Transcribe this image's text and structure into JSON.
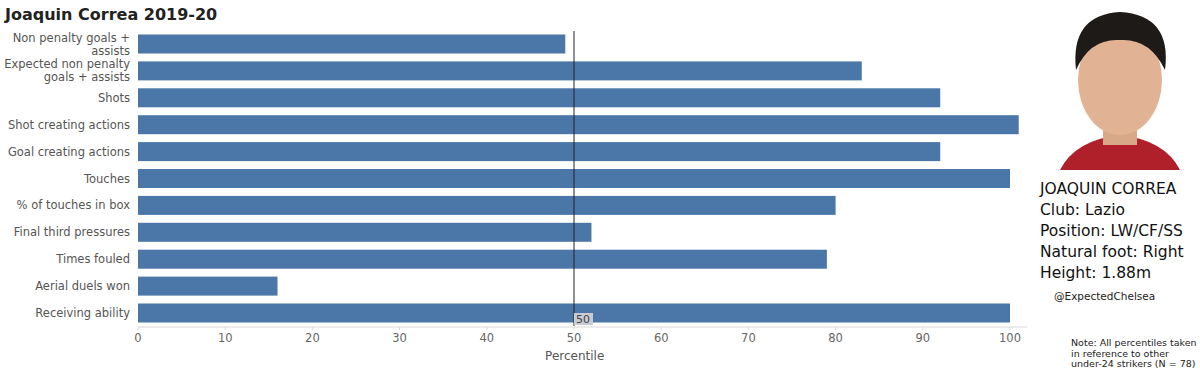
{
  "chart_data": {
    "type": "bar",
    "orientation": "horizontal",
    "title": "Joaquin Correa 2019-20",
    "categories": [
      "Non penalty goals + assists",
      "Expected non penalty goals + assists",
      "Shots",
      "Shot creating actions",
      "Goal creating actions",
      "Touches",
      "% of touches in box",
      "Final third pressures",
      "Times fouled",
      "Aerial duels won",
      "Receiving ability"
    ],
    "values": [
      49,
      83,
      92,
      101,
      92,
      100,
      80,
      52,
      79,
      16,
      100
    ],
    "color": "#4a77a8",
    "xlabel": "Percentile",
    "xlim": [
      0,
      102
    ],
    "xticks": [
      0,
      10,
      20,
      30,
      40,
      50,
      60,
      70,
      80,
      90,
      100
    ],
    "grid": false,
    "reference_line": {
      "value": 50,
      "label": "50"
    }
  },
  "player": {
    "name": "JOAQUIN CORREA",
    "details": [
      "Club: Lazio",
      "Position: LW/CF/SS",
      "Natural foot: Right",
      "Height: 1.88m"
    ]
  },
  "credit": "@ExpectedChelsea",
  "note": [
    "Note: All percentiles taken",
    "in reference to other",
    "under-24 strikers (N = 78)"
  ]
}
